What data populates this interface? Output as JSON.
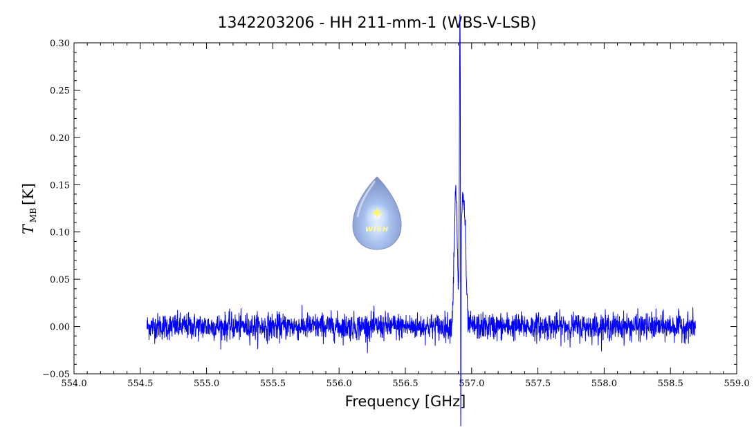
{
  "chart_data": {
    "type": "line",
    "title": "1342203206 - HH 211-mm-1 (WBS-V-LSB)",
    "xlabel": "Frequency [GHz]",
    "ylabel_main": "T",
    "ylabel_sub": "MB",
    "ylabel_unit": "[K]",
    "xlim": [
      554.0,
      559.0
    ],
    "ylim": [
      -0.05,
      0.3
    ],
    "x_ticks": [
      "554.0",
      "554.5",
      "555.0",
      "555.5",
      "556.0",
      "556.5",
      "557.0",
      "557.5",
      "558.0",
      "558.5",
      "559.0"
    ],
    "y_ticks": [
      "−0.05",
      "0.00",
      "0.05",
      "0.10",
      "0.15",
      "0.20",
      "0.25",
      "0.30"
    ],
    "series": [
      {
        "color": "#0000ff",
        "x_range": [
          554.55,
          558.69
        ],
        "baseline": 0.0,
        "noise_rms": 0.007,
        "peak_features": [
          {
            "center": 556.88,
            "height": 0.14,
            "width": 0.012
          },
          {
            "center": 556.912,
            "height": 0.285,
            "width": 0.004
          },
          {
            "center": 556.93,
            "height": 0.12,
            "width": 0.012
          },
          {
            "center": 556.95,
            "height": 0.08,
            "width": 0.01
          }
        ],
        "absorption": {
          "center": 556.918,
          "depth": 0.29
        }
      }
    ],
    "grid": false
  },
  "logo": {
    "text": "WISH",
    "icon": "water-drop-logo"
  }
}
